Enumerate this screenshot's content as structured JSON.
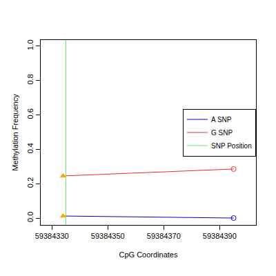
{
  "chart_data": {
    "type": "line",
    "xlabel": "CpG Coordinates",
    "ylabel": "Methylation Frequency",
    "xlim": [
      59384326,
      59384403
    ],
    "xticks": [
      59384330,
      59384350,
      59384370,
      59384390
    ],
    "ylim": [
      -0.04,
      1.035
    ],
    "yticks": [
      {
        "value": 0,
        "label": "0.0"
      },
      0.2,
      0.4,
      0.6,
      0.8,
      {
        "value": 1,
        "label": "1.0"
      }
    ],
    "grid": false,
    "legend": "right",
    "series": [
      {
        "name": "A SNP",
        "color": "#0000cd",
        "x": [
          59384334,
          59384395
        ],
        "values": [
          0.012,
          0.0
        ]
      },
      {
        "name": "G SNP",
        "color": "#ee2c2c",
        "x": [
          59384334,
          59384395
        ],
        "values": [
          0.245,
          0.285
        ]
      }
    ],
    "snp": {
      "name": "SNP Position",
      "color": "#66ee66",
      "x": 59384335
    }
  }
}
